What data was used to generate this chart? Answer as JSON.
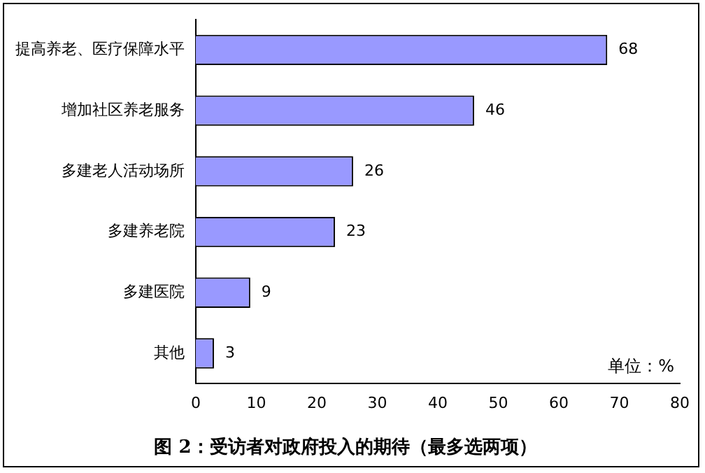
{
  "chart_data": {
    "type": "bar",
    "orientation": "horizontal",
    "title": "图 2：受访者对政府投入的期待（最多选两项）",
    "categories": [
      "提高养老、医疗保障水平",
      "增加社区养老服务",
      "多建老人活动场所",
      "多建养老院",
      "多建医院",
      "其他"
    ],
    "values": [
      68,
      46,
      26,
      23,
      9,
      3
    ],
    "color": "#9999ff",
    "xlim": [
      0,
      80
    ],
    "xticks": [
      0,
      10,
      20,
      30,
      40,
      50,
      60,
      70,
      80
    ],
    "annotations": [
      "单位：%"
    ],
    "data_labels": true,
    "grid": false,
    "legend": false
  }
}
